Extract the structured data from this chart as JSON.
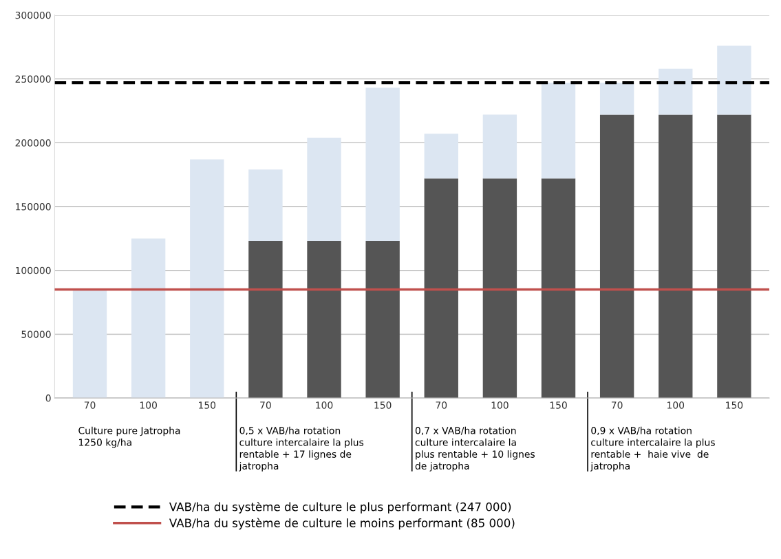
{
  "chart_data": {
    "type": "bar",
    "stacked": true,
    "categories": [
      "70",
      "100",
      "150",
      "70",
      "100",
      "150",
      "70",
      "100",
      "150",
      "70",
      "100",
      "150"
    ],
    "series": [
      {
        "color": "#555555",
        "values": [
          null,
          null,
          null,
          123000,
          123000,
          123000,
          172000,
          172000,
          172000,
          222000,
          222000,
          222000
        ]
      },
      {
        "color": "#dce6f2",
        "values": [
          85000,
          125000,
          187000,
          56000,
          81000,
          120000,
          35000,
          50000,
          75000,
          25000,
          36000,
          54000
        ]
      }
    ],
    "ylim": [
      0,
      300000
    ],
    "yticks": [
      0,
      50000,
      100000,
      150000,
      200000,
      250000,
      300000
    ],
    "grid": "y",
    "ref_lines": [
      {
        "axis": "y",
        "value": 247000,
        "label": "VAB/ha du système de culture le plus performant (247 000)",
        "color": "#000000",
        "line_style": "dashed"
      },
      {
        "axis": "y",
        "value": 85000,
        "label": "VAB/ha du système de culture le moins performant (85 000)",
        "color": "#c0504d",
        "line_style": "solid"
      }
    ],
    "annotations": [
      "Culture pure Jatropha\n1250 kg/ha",
      "0,5 x VAB/ha rotation\nculture intercalaire la plus\nrentable + 17 lignes de\njatropha",
      "0,7 x VAB/ha rotation\nculture intercalaire la\nplus rentable + 10 lignes\nde jatropha",
      "0,9 x VAB/ha rotation\nculture intercalaire la plus\nrentable +  haie vive  de\njatropha"
    ],
    "legend": "bottom"
  }
}
